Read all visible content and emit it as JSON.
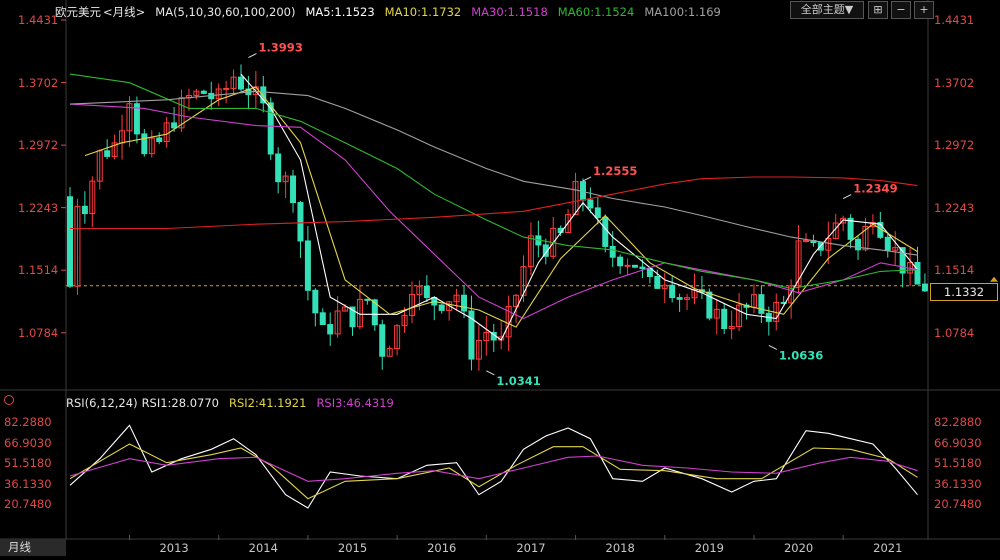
{
  "header": {
    "symbol": "欧元美元",
    "period": "<月线>",
    "ma_label": "MA(5,10,30,60,100,200)",
    "ma5": "MA5:1.1523",
    "ma10": "MA10:1.1732",
    "ma30": "MA30:1.1518",
    "ma60": "MA60:1.1524",
    "ma100": "MA100:1.169",
    "theme_button": "全部主题▼"
  },
  "rsi_header": {
    "label": "RSI(6,12,24)",
    "rsi1": "RSI1:28.0770",
    "rsi2": "RSI2:41.1921",
    "rsi3": "RSI3:46.4319"
  },
  "bottom_tab": "月线",
  "current_price": "1.1332",
  "colors": {
    "up": "#ff3b3b",
    "down": "#33e0b8",
    "ma5": "#ffffff",
    "ma10": "#e3d54a",
    "ma30": "#d040d0",
    "ma60": "#2fb82f",
    "ma100": "#a0a0a0",
    "ma200": "#e02020",
    "axis_text": "#e04848"
  },
  "chart_data": [
    {
      "type": "candlestick",
      "title": "欧元美元 <月线>",
      "y_ticks": [
        "1.4431",
        "1.3702",
        "1.2972",
        "1.2243",
        "1.1514",
        "1.0784"
      ],
      "x_ticks": [
        "2013",
        "2014",
        "2015",
        "2016",
        "2017",
        "2018",
        "2019",
        "2020",
        "2021"
      ],
      "ylim": [
        1.035,
        1.4431
      ],
      "annotations": [
        {
          "label": "1.3993",
          "date": "2014-05",
          "value": 1.3993
        },
        {
          "label": "1.2555",
          "date": "2018-02",
          "value": 1.2555
        },
        {
          "label": "1.0341",
          "date": "2017-01",
          "value": 1.0341
        },
        {
          "label": "1.2349",
          "date": "2021-01",
          "value": 1.2349
        },
        {
          "label": "1.0636",
          "date": "2020-03",
          "value": 1.0636
        }
      ],
      "close_anchors": [
        [
          "2012-05",
          1.237
        ],
        [
          "2012-07",
          1.23
        ],
        [
          "2012-09",
          1.286
        ],
        [
          "2012-11",
          1.298
        ],
        [
          "2013-01",
          1.357
        ],
        [
          "2013-03",
          1.282
        ],
        [
          "2013-05",
          1.3
        ],
        [
          "2013-07",
          1.33
        ],
        [
          "2013-09",
          1.352
        ],
        [
          "2013-11",
          1.359
        ],
        [
          "2014-01",
          1.349
        ],
        [
          "2014-03",
          1.378
        ],
        [
          "2014-05",
          1.363
        ],
        [
          "2014-07",
          1.339
        ],
        [
          "2014-09",
          1.263
        ],
        [
          "2014-11",
          1.245
        ],
        [
          "2015-01",
          1.129
        ],
        [
          "2015-03",
          1.076
        ],
        [
          "2015-05",
          1.099
        ],
        [
          "2015-07",
          1.098
        ],
        [
          "2015-09",
          1.117
        ],
        [
          "2015-11",
          1.059
        ],
        [
          "2016-01",
          1.083
        ],
        [
          "2016-03",
          1.138
        ],
        [
          "2016-05",
          1.113
        ],
        [
          "2016-07",
          1.117
        ],
        [
          "2016-09",
          1.124
        ],
        [
          "2016-11",
          1.059
        ],
        [
          "2017-01",
          1.08
        ],
        [
          "2017-03",
          1.065
        ],
        [
          "2017-05",
          1.124
        ],
        [
          "2017-07",
          1.184
        ],
        [
          "2017-09",
          1.181
        ],
        [
          "2017-11",
          1.19
        ],
        [
          "2018-01",
          1.241
        ],
        [
          "2018-03",
          1.232
        ],
        [
          "2018-05",
          1.169
        ],
        [
          "2018-07",
          1.169
        ],
        [
          "2018-09",
          1.16
        ],
        [
          "2018-11",
          1.132
        ],
        [
          "2019-01",
          1.145
        ],
        [
          "2019-03",
          1.122
        ],
        [
          "2019-05",
          1.117
        ],
        [
          "2019-07",
          1.108
        ],
        [
          "2019-09",
          1.09
        ],
        [
          "2019-11",
          1.102
        ],
        [
          "2020-01",
          1.109
        ],
        [
          "2020-03",
          1.103
        ],
        [
          "2020-05",
          1.11
        ],
        [
          "2020-07",
          1.178
        ],
        [
          "2020-09",
          1.172
        ],
        [
          "2020-11",
          1.193
        ],
        [
          "2021-01",
          1.213
        ],
        [
          "2021-03",
          1.173
        ],
        [
          "2021-05",
          1.222
        ],
        [
          "2021-07",
          1.187
        ],
        [
          "2021-09",
          1.158
        ],
        [
          "2021-11",
          1.133
        ]
      ],
      "ma_series": [
        {
          "name": "MA5",
          "color": "#ffffff",
          "points": [
            [
              "2014-04",
              1.38
            ],
            [
              "2014-08",
              1.34
            ],
            [
              "2014-12",
              1.28
            ],
            [
              "2015-04",
              1.12
            ],
            [
              "2015-08",
              1.1
            ],
            [
              "2016-01",
              1.1
            ],
            [
              "2016-06",
              1.12
            ],
            [
              "2016-11",
              1.095
            ],
            [
              "2017-03",
              1.07
            ],
            [
              "2017-08",
              1.16
            ],
            [
              "2018-02",
              1.23
            ],
            [
              "2018-06",
              1.19
            ],
            [
              "2019-01",
              1.14
            ],
            [
              "2019-06",
              1.125
            ],
            [
              "2019-12",
              1.1
            ],
            [
              "2020-04",
              1.095
            ],
            [
              "2020-09",
              1.17
            ],
            [
              "2021-01",
              1.21
            ],
            [
              "2021-06",
              1.205
            ],
            [
              "2021-11",
              1.152
            ]
          ]
        },
        {
          "name": "MA10",
          "color": "#e3d54a",
          "points": [
            [
              "2012-07",
              1.285
            ],
            [
              "2012-12",
              1.3
            ],
            [
              "2013-06",
              1.31
            ],
            [
              "2014-01",
              1.35
            ],
            [
              "2014-06",
              1.365
            ],
            [
              "2014-12",
              1.3
            ],
            [
              "2015-06",
              1.14
            ],
            [
              "2015-12",
              1.1
            ],
            [
              "2016-06",
              1.115
            ],
            [
              "2016-12",
              1.105
            ],
            [
              "2017-05",
              1.085
            ],
            [
              "2017-11",
              1.165
            ],
            [
              "2018-05",
              1.215
            ],
            [
              "2018-11",
              1.16
            ],
            [
              "2019-05",
              1.13
            ],
            [
              "2019-12",
              1.11
            ],
            [
              "2020-05",
              1.1
            ],
            [
              "2020-11",
              1.165
            ],
            [
              "2021-05",
              1.205
            ],
            [
              "2021-11",
              1.173
            ]
          ]
        },
        {
          "name": "MA30",
          "color": "#d040d0",
          "points": [
            [
              "2012-05",
              1.345
            ],
            [
              "2013-03",
              1.34
            ],
            [
              "2013-09",
              1.33
            ],
            [
              "2014-06",
              1.32
            ],
            [
              "2014-12",
              1.318
            ],
            [
              "2015-06",
              1.28
            ],
            [
              "2015-12",
              1.22
            ],
            [
              "2016-06",
              1.17
            ],
            [
              "2016-12",
              1.12
            ],
            [
              "2017-06",
              1.095
            ],
            [
              "2017-12",
              1.12
            ],
            [
              "2018-06",
              1.14
            ],
            [
              "2019-01",
              1.16
            ],
            [
              "2019-07",
              1.15
            ],
            [
              "2020-01",
              1.14
            ],
            [
              "2020-07",
              1.125
            ],
            [
              "2021-01",
              1.14
            ],
            [
              "2021-06",
              1.16
            ],
            [
              "2021-11",
              1.152
            ]
          ]
        },
        {
          "name": "MA60",
          "color": "#2fb82f",
          "points": [
            [
              "2012-05",
              1.38
            ],
            [
              "2013-01",
              1.37
            ],
            [
              "2013-09",
              1.34
            ],
            [
              "2014-06",
              1.34
            ],
            [
              "2014-12",
              1.325
            ],
            [
              "2015-06",
              1.3
            ],
            [
              "2016-01",
              1.27
            ],
            [
              "2016-06",
              1.24
            ],
            [
              "2017-01",
              1.21
            ],
            [
              "2017-06",
              1.19
            ],
            [
              "2017-12",
              1.18
            ],
            [
              "2018-06",
              1.175
            ],
            [
              "2019-01",
              1.16
            ],
            [
              "2019-06",
              1.15
            ],
            [
              "2020-01",
              1.14
            ],
            [
              "2020-06",
              1.13
            ],
            [
              "2021-01",
              1.14
            ],
            [
              "2021-06",
              1.15
            ],
            [
              "2021-11",
              1.152
            ]
          ]
        },
        {
          "name": "MA100",
          "color": "#a0a0a0",
          "points": [
            [
              "2012-05",
              1.345
            ],
            [
              "2013-06",
              1.35
            ],
            [
              "2014-06",
              1.36
            ],
            [
              "2015-01",
              1.355
            ],
            [
              "2015-06",
              1.34
            ],
            [
              "2016-01",
              1.315
            ],
            [
              "2016-06",
              1.295
            ],
            [
              "2017-01",
              1.27
            ],
            [
              "2017-06",
              1.255
            ],
            [
              "2018-01",
              1.245
            ],
            [
              "2018-06",
              1.235
            ],
            [
              "2019-01",
              1.225
            ],
            [
              "2019-06",
              1.215
            ],
            [
              "2020-01",
              1.2
            ],
            [
              "2020-06",
              1.19
            ],
            [
              "2021-01",
              1.18
            ],
            [
              "2021-06",
              1.175
            ],
            [
              "2021-11",
              1.169
            ]
          ]
        },
        {
          "name": "MA200",
          "color": "#e02020",
          "points": [
            [
              "2012-05",
              1.2
            ],
            [
              "2013-06",
              1.2
            ],
            [
              "2014-06",
              1.205
            ],
            [
              "2015-06",
              1.208
            ],
            [
              "2016-06",
              1.213
            ],
            [
              "2017-06",
              1.22
            ],
            [
              "2018-06",
              1.24
            ],
            [
              "2019-01",
              1.252
            ],
            [
              "2019-06",
              1.258
            ],
            [
              "2020-01",
              1.26
            ],
            [
              "2020-06",
              1.26
            ],
            [
              "2021-01",
              1.259
            ],
            [
              "2021-06",
              1.256
            ],
            [
              "2021-11",
              1.25
            ]
          ]
        }
      ]
    },
    {
      "type": "line",
      "title": "RSI(6,12,24)",
      "y_ticks": [
        "82.2880",
        "66.9030",
        "51.5180",
        "36.1330",
        "20.7480"
      ],
      "ylim": [
        15,
        90
      ],
      "series": [
        {
          "name": "RSI1",
          "color": "#ffffff",
          "points": [
            [
              "2012-05",
              35
            ],
            [
              "2012-09",
              55
            ],
            [
              "2013-01",
              80
            ],
            [
              "2013-04",
              45
            ],
            [
              "2013-08",
              55
            ],
            [
              "2013-12",
              62
            ],
            [
              "2014-03",
              70
            ],
            [
              "2014-06",
              58
            ],
            [
              "2014-10",
              28
            ],
            [
              "2015-01",
              18
            ],
            [
              "2015-04",
              45
            ],
            [
              "2015-08",
              42
            ],
            [
              "2016-01",
              40
            ],
            [
              "2016-05",
              50
            ],
            [
              "2016-09",
              52
            ],
            [
              "2016-12",
              28
            ],
            [
              "2017-03",
              38
            ],
            [
              "2017-06",
              62
            ],
            [
              "2017-09",
              72
            ],
            [
              "2017-12",
              78
            ],
            [
              "2018-03",
              70
            ],
            [
              "2018-06",
              40
            ],
            [
              "2018-10",
              38
            ],
            [
              "2019-01",
              48
            ],
            [
              "2019-06",
              40
            ],
            [
              "2019-10",
              30
            ],
            [
              "2020-01",
              38
            ],
            [
              "2020-04",
              40
            ],
            [
              "2020-08",
              76
            ],
            [
              "2020-11",
              74
            ],
            [
              "2021-02",
              70
            ],
            [
              "2021-05",
              66
            ],
            [
              "2021-08",
              48
            ],
            [
              "2021-11",
              28
            ]
          ]
        },
        {
          "name": "RSI2",
          "color": "#e3d54a",
          "points": [
            [
              "2012-05",
              40
            ],
            [
              "2013-01",
              66
            ],
            [
              "2013-06",
              52
            ],
            [
              "2013-12",
              58
            ],
            [
              "2014-04",
              63
            ],
            [
              "2014-08",
              50
            ],
            [
              "2015-01",
              25
            ],
            [
              "2015-06",
              38
            ],
            [
              "2016-01",
              40
            ],
            [
              "2016-08",
              48
            ],
            [
              "2016-12",
              34
            ],
            [
              "2017-05",
              50
            ],
            [
              "2017-10",
              64
            ],
            [
              "2018-02",
              64
            ],
            [
              "2018-07",
              47
            ],
            [
              "2019-01",
              46
            ],
            [
              "2019-08",
              40
            ],
            [
              "2020-02",
              40
            ],
            [
              "2020-09",
              63
            ],
            [
              "2021-02",
              62
            ],
            [
              "2021-07",
              55
            ],
            [
              "2021-11",
              41
            ]
          ]
        },
        {
          "name": "RSI3",
          "color": "#d040d0",
          "points": [
            [
              "2012-05",
              42
            ],
            [
              "2013-01",
              55
            ],
            [
              "2013-06",
              50
            ],
            [
              "2014-01",
              55
            ],
            [
              "2014-06",
              56
            ],
            [
              "2015-01",
              38
            ],
            [
              "2015-06",
              40
            ],
            [
              "2016-01",
              44
            ],
            [
              "2016-06",
              46
            ],
            [
              "2016-12",
              40
            ],
            [
              "2017-06",
              48
            ],
            [
              "2017-12",
              56
            ],
            [
              "2018-04",
              57
            ],
            [
              "2018-10",
              50
            ],
            [
              "2019-04",
              48
            ],
            [
              "2019-10",
              45
            ],
            [
              "2020-04",
              44
            ],
            [
              "2020-10",
              52
            ],
            [
              "2021-02",
              56
            ],
            [
              "2021-07",
              53
            ],
            [
              "2021-11",
              46
            ]
          ]
        }
      ]
    }
  ]
}
